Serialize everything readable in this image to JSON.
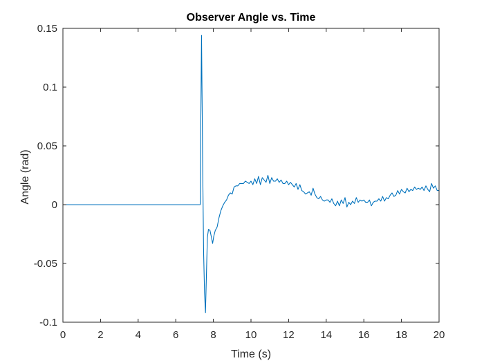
{
  "chart_data": {
    "type": "line",
    "title": "Observer Angle vs. Time",
    "xlabel": "Time (s)",
    "ylabel": "Angle (rad)",
    "xlim": [
      0,
      20
    ],
    "ylim": [
      -0.1,
      0.15
    ],
    "xticks": [
      0,
      2,
      4,
      6,
      8,
      10,
      12,
      14,
      16,
      18,
      20
    ],
    "xtick_labels": [
      "0",
      "2",
      "4",
      "6",
      "8",
      "10",
      "12",
      "14",
      "16",
      "18",
      "20"
    ],
    "yticks": [
      -0.1,
      -0.05,
      0,
      0.05,
      0.1,
      0.15
    ],
    "ytick_labels": [
      "-0.1",
      "-0.05",
      "0",
      "0.05",
      "0.1",
      "0.15"
    ],
    "grid": false,
    "box": true,
    "series": [
      {
        "color": "#0072bd",
        "x": [
          0,
          7.3,
          7.33,
          7.37,
          7.4,
          7.44,
          7.48,
          7.53,
          7.58,
          7.63,
          7.68,
          7.74,
          7.82,
          7.9,
          7.96,
          8.02,
          8.1,
          8.2,
          8.3,
          8.4,
          8.5,
          8.6,
          8.7,
          8.8,
          8.9,
          9.0,
          9.1,
          9.2,
          9.3,
          9.4,
          9.5,
          9.6,
          9.7,
          9.8,
          9.9,
          10.0,
          10.1,
          10.2,
          10.3,
          10.4,
          10.5,
          10.6,
          10.7,
          10.8,
          10.9,
          11.0,
          11.1,
          11.2,
          11.3,
          11.4,
          11.5,
          11.6,
          11.7,
          11.8,
          11.9,
          12.0,
          12.1,
          12.2,
          12.3,
          12.4,
          12.5,
          12.6,
          12.7,
          12.8,
          12.9,
          13.0,
          13.1,
          13.2,
          13.3,
          13.4,
          13.5,
          13.6,
          13.7,
          13.8,
          13.9,
          14.0,
          14.1,
          14.2,
          14.3,
          14.4,
          14.5,
          14.6,
          14.7,
          14.8,
          14.9,
          15.0,
          15.1,
          15.2,
          15.3,
          15.4,
          15.5,
          15.6,
          15.7,
          15.8,
          15.9,
          16.0,
          16.1,
          16.2,
          16.3,
          16.4,
          16.5,
          16.6,
          16.7,
          16.8,
          16.9,
          17.0,
          17.1,
          17.2,
          17.3,
          17.4,
          17.5,
          17.6,
          17.7,
          17.8,
          17.9,
          18.0,
          18.1,
          18.2,
          18.3,
          18.4,
          18.5,
          18.6,
          18.7,
          18.8,
          18.9,
          19.0,
          19.1,
          19.2,
          19.3,
          19.4,
          19.5,
          19.6,
          19.7,
          19.8,
          19.9,
          20.0
        ],
        "y": [
          0,
          0,
          0.07,
          0.144,
          0.09,
          0.02,
          -0.04,
          -0.075,
          -0.092,
          -0.06,
          -0.028,
          -0.021,
          -0.022,
          -0.028,
          -0.033,
          -0.027,
          -0.022,
          -0.019,
          -0.011,
          -0.005,
          -0.001,
          0.002,
          0.004,
          0.008,
          0.01,
          0.009,
          0.015,
          0.016,
          0.016,
          0.018,
          0.018,
          0.018,
          0.02,
          0.019,
          0.018,
          0.02,
          0.017,
          0.022,
          0.018,
          0.024,
          0.017,
          0.023,
          0.021,
          0.019,
          0.025,
          0.018,
          0.023,
          0.02,
          0.02,
          0.022,
          0.019,
          0.021,
          0.018,
          0.018,
          0.02,
          0.017,
          0.019,
          0.017,
          0.015,
          0.018,
          0.013,
          0.017,
          0.012,
          0.011,
          0.009,
          0.01,
          0.011,
          0.008,
          0.014,
          0.009,
          0.006,
          0.005,
          0.007,
          0.004,
          0.003,
          0.004,
          0.004,
          0.002,
          0.005,
          0.001,
          -0.001,
          0.003,
          -0.001,
          0.004,
          0.001,
          0.006,
          -0.002,
          0.002,
          0,
          0.003,
          0.001,
          0.006,
          0.002,
          0.004,
          0.003,
          0.004,
          0.002,
          0.002,
          0.004,
          -0.001,
          0.002,
          0.003,
          0.003,
          0.005,
          0.003,
          0.007,
          0.003,
          0.006,
          0.005,
          0.008,
          0.01,
          0.007,
          0.008,
          0.012,
          0.009,
          0.013,
          0.011,
          0.01,
          0.014,
          0.011,
          0.013,
          0.012,
          0.015,
          0.013,
          0.014,
          0.013,
          0.015,
          0.012,
          0.016,
          0.013,
          0.011,
          0.018,
          0.014,
          0.016,
          0.012,
          0.012
        ]
      }
    ]
  }
}
